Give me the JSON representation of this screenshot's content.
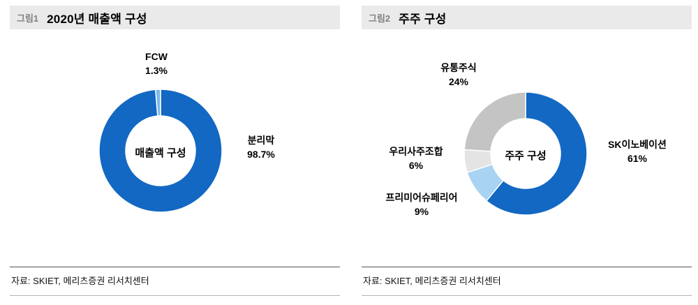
{
  "figures": [
    {
      "tag": "그림1",
      "title": "2020년 매출액 구성",
      "source": "자료: SKIET, 메리츠증권 리서치센터"
    },
    {
      "tag": "그림2",
      "title": "주주 구성",
      "source": "자료: SKIET, 메리츠증권 리서치센터"
    }
  ],
  "chart_data": [
    {
      "type": "pie",
      "donut": true,
      "title": "2020년 매출액 구성",
      "center_label": "매출액 구성",
      "start_angle": 0,
      "direction": "clockwise",
      "legend_position": "none",
      "segments": [
        {
          "label": "분리막",
          "value": 98.7,
          "pct": "98.7%",
          "color": "#1268c3",
          "label_pos": "right"
        },
        {
          "label": "FCW",
          "value": 1.3,
          "pct": "1.3%",
          "color": "#7db8e8",
          "label_pos": "top"
        }
      ]
    },
    {
      "type": "pie",
      "donut": true,
      "title": "주주 구성",
      "center_label": "주주 구성",
      "start_angle": 0,
      "direction": "clockwise",
      "legend_position": "none",
      "segments": [
        {
          "label": "SK이노베이션",
          "value": 61,
          "pct": "61%",
          "color": "#1268c3",
          "label_pos": "right"
        },
        {
          "label": "프리미어슈페리어",
          "value": 9,
          "pct": "9%",
          "color": "#a8d3f2",
          "label_pos": "bottom-left"
        },
        {
          "label": "우리사주조합",
          "value": 6,
          "pct": "6%",
          "color": "#e4e4e4",
          "label_pos": "left"
        },
        {
          "label": "유통주식",
          "value": 24,
          "pct": "24%",
          "color": "#c4c4c4",
          "label_pos": "top"
        }
      ]
    }
  ]
}
